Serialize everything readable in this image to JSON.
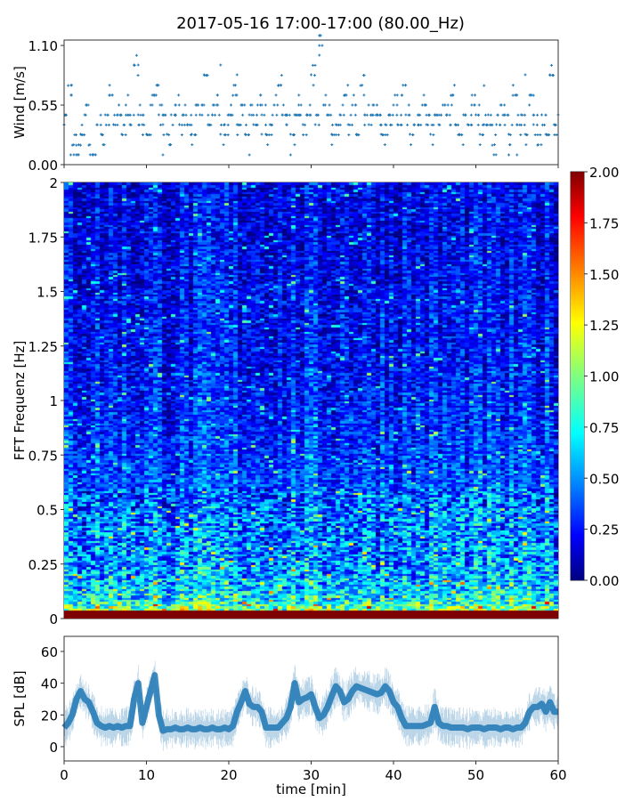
{
  "title": "2017-05-16 17:00-17:00 (80.00_Hz)",
  "colors": {
    "series": "#1f77b4",
    "axis": "#333333"
  },
  "chart_data": [
    {
      "type": "scatter",
      "name": "wind",
      "ylabel": "Wind [m/s]",
      "xlim": [
        0,
        60
      ],
      "ylim": [
        0,
        1.15
      ],
      "yticks": [
        0.0,
        0.55,
        1.1
      ],
      "ytick_labels": [
        "0.00",
        "0.55",
        "1.10"
      ],
      "xticks": [
        0,
        10,
        20,
        30,
        40,
        50,
        60
      ],
      "marker": "+",
      "x_step_min": 0.5,
      "values": [
        0.37,
        0.73,
        0.18,
        0.09,
        0.28,
        0.46,
        0.18,
        0.09,
        0.37,
        0.28,
        0.46,
        0.64,
        0.37,
        0.46,
        0.28,
        0.55,
        0.37,
        0.92,
        0.46,
        0.37,
        0.28,
        0.55,
        0.64,
        0.46,
        0.37,
        0.28,
        0.46,
        0.55,
        0.37,
        0.46,
        0.37,
        0.28,
        0.55,
        0.46,
        0.83,
        0.37,
        0.46,
        0.55,
        0.28,
        0.37,
        0.46,
        0.64,
        0.37,
        0.55,
        0.28,
        0.46,
        0.37,
        0.55,
        0.46,
        0.28,
        0.37,
        0.55,
        0.73,
        0.46,
        0.37,
        0.28,
        0.46,
        0.55,
        0.37,
        0.46,
        0.83,
        0.37,
        1.1,
        0.55,
        0.46,
        0.28,
        0.37,
        0.46,
        0.64,
        0.37,
        0.55,
        0.28,
        0.73,
        0.46,
        0.37,
        0.55,
        0.46,
        0.28,
        0.37,
        0.46,
        0.55,
        0.37,
        0.64,
        0.46,
        0.28,
        0.37,
        0.46,
        0.55,
        0.37,
        0.28,
        0.46,
        0.37,
        0.55,
        0.46,
        0.64,
        0.37,
        0.28,
        0.46,
        0.37,
        0.55,
        0.46,
        0.28,
        0.37,
        0.46,
        0.18,
        0.37,
        0.55,
        0.46,
        0.28,
        0.64,
        0.37,
        0.46,
        0.28,
        0.55,
        0.37,
        0.18,
        0.46,
        0.28,
        0.83,
        0.37,
        0.46
      ],
      "extra_points": [
        [
          0.8,
          0.09
        ],
        [
          1.5,
          0.18
        ],
        [
          2,
          0.18
        ],
        [
          9,
          0.92
        ],
        [
          19,
          0.92
        ],
        [
          21,
          0.83
        ],
        [
          31,
          1.01
        ],
        [
          47,
          0.64
        ],
        [
          51,
          0.73
        ],
        [
          56,
          0.83
        ],
        [
          57,
          0.64
        ],
        [
          54,
          0.09
        ],
        [
          55,
          0.09
        ],
        [
          22.5,
          0.09
        ],
        [
          27.5,
          0.09
        ],
        [
          24,
          0.28
        ],
        [
          12,
          0.09
        ]
      ]
    },
    {
      "type": "heatmap",
      "name": "spectrogram",
      "ylabel": "FFT Frequenz [Hz]",
      "xlim": [
        0,
        60
      ],
      "ylim": [
        0,
        2
      ],
      "yticks": [
        0,
        0.25,
        0.5,
        0.75,
        1,
        1.25,
        1.5,
        1.75,
        2
      ],
      "ytick_labels": [
        "0",
        "0.25",
        "0.5",
        "0.75",
        "1",
        "1.25",
        "1.5",
        "1.75",
        "2"
      ],
      "colormap": "jet",
      "color_range": [
        0,
        2
      ],
      "colorbar_ticks": [
        "0.00",
        "0.25",
        "0.50",
        "0.75",
        "1.00",
        "1.25",
        "1.50",
        "1.75",
        "2.00"
      ],
      "mean_profile": {
        "freq": [
          0,
          0.03,
          0.08,
          0.15,
          0.25,
          0.4,
          0.5,
          0.6,
          0.75,
          1.0,
          1.25,
          1.5,
          1.75,
          2.0
        ],
        "value": [
          2.0,
          1.1,
          0.8,
          0.65,
          0.55,
          0.5,
          0.48,
          0.42,
          0.36,
          0.3,
          0.27,
          0.25,
          0.22,
          0.22
        ]
      }
    },
    {
      "type": "line",
      "name": "spl",
      "ylabel": "SPL [dB]",
      "xlabel": "time [min]",
      "xlim": [
        0,
        60
      ],
      "ylim": [
        -9,
        69.5
      ],
      "yticks": [
        0,
        20,
        40,
        60
      ],
      "ytick_labels": [
        "0",
        "20",
        "40",
        "60"
      ],
      "xticks": [
        0,
        10,
        20,
        30,
        40,
        50,
        60
      ],
      "xtick_labels": [
        "0",
        "10",
        "20",
        "30",
        "40",
        "50",
        "60"
      ],
      "x_step_min": 0.5,
      "values": [
        12,
        15,
        20,
        30,
        35,
        30,
        28,
        22,
        15,
        13,
        12,
        13,
        12,
        13,
        12,
        13,
        13,
        30,
        40,
        15,
        25,
        35,
        45,
        20,
        10,
        11,
        11,
        12,
        11,
        11,
        12,
        11,
        11,
        12,
        11,
        11,
        12,
        11,
        11,
        12,
        11,
        13,
        22,
        28,
        35,
        27,
        25,
        25,
        22,
        12,
        12,
        12,
        12,
        15,
        18,
        25,
        40,
        28,
        30,
        31,
        33,
        25,
        18,
        20,
        25,
        32,
        38,
        35,
        28,
        30,
        35,
        38,
        37,
        36,
        35,
        34,
        33,
        34,
        38,
        35,
        28,
        25,
        18,
        13,
        13,
        13,
        13,
        13,
        14,
        15,
        25,
        15,
        13,
        13,
        12,
        12,
        12,
        12,
        11,
        12,
        12,
        12,
        11,
        12,
        12,
        12,
        11,
        12,
        12,
        11,
        12,
        12,
        15,
        22,
        25,
        25,
        27,
        22,
        28,
        22,
        22
      ]
    }
  ]
}
